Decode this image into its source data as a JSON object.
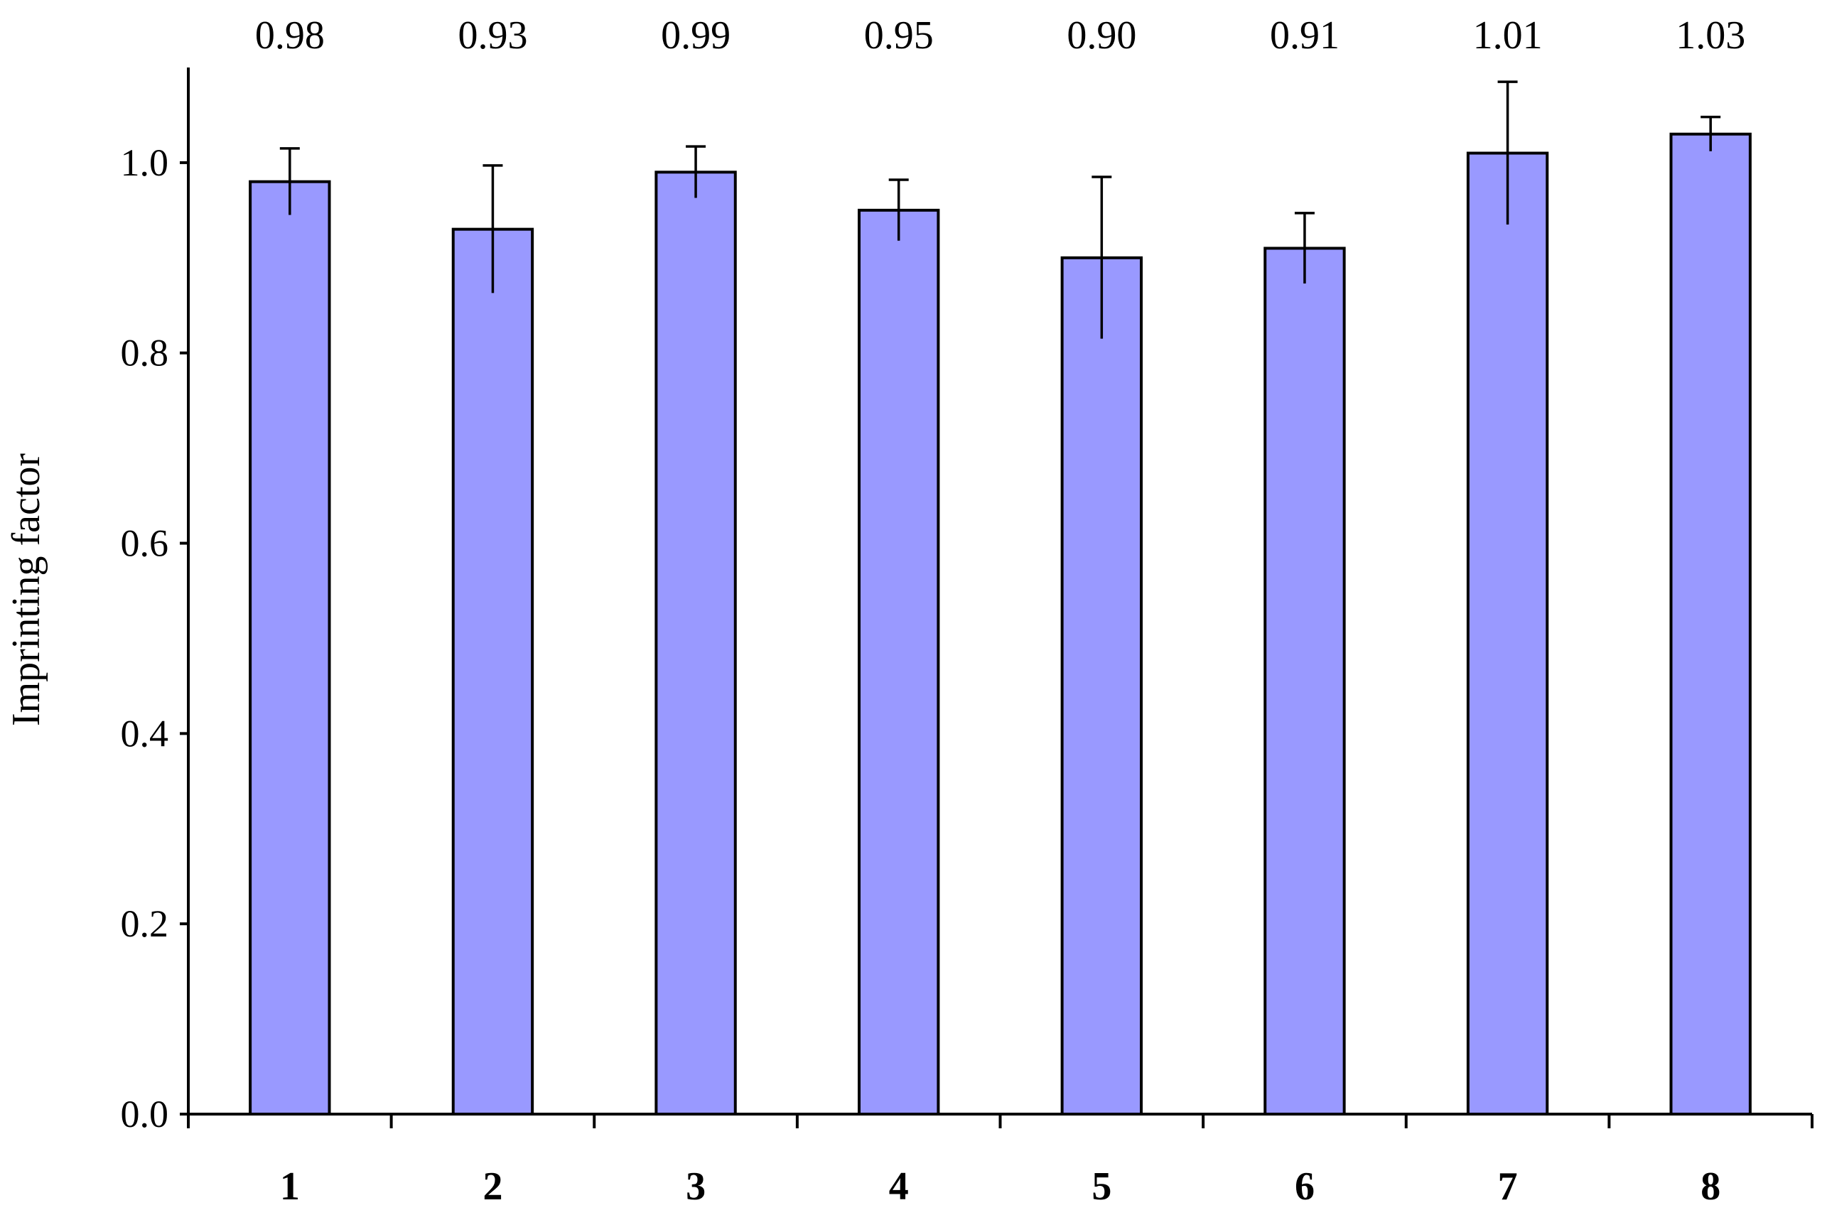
{
  "chart_data": {
    "type": "bar",
    "title": "",
    "xlabel": "",
    "ylabel": "Imprinting factor",
    "categories": [
      "1",
      "2",
      "3",
      "4",
      "5",
      "6",
      "7",
      "8"
    ],
    "series": [
      {
        "values": [
          0.98,
          0.93,
          0.99,
          0.95,
          0.9,
          0.91,
          1.01,
          1.03
        ],
        "error": [
          0.035,
          0.067,
          0.027,
          0.032,
          0.085,
          0.037,
          0.075,
          0.018
        ]
      }
    ],
    "data_labels": [
      "0.98",
      "0.93",
      "0.99",
      "0.95",
      "0.90",
      "0.91",
      "1.01",
      "1.03"
    ],
    "yticks": [
      "0.0",
      "0.2",
      "0.4",
      "0.6",
      "0.8",
      "1.0"
    ],
    "ylim": [
      0,
      1.1
    ],
    "grid": false,
    "legend": "none",
    "bar_color": "#9999ff",
    "bar_edge_color": "#000000"
  }
}
